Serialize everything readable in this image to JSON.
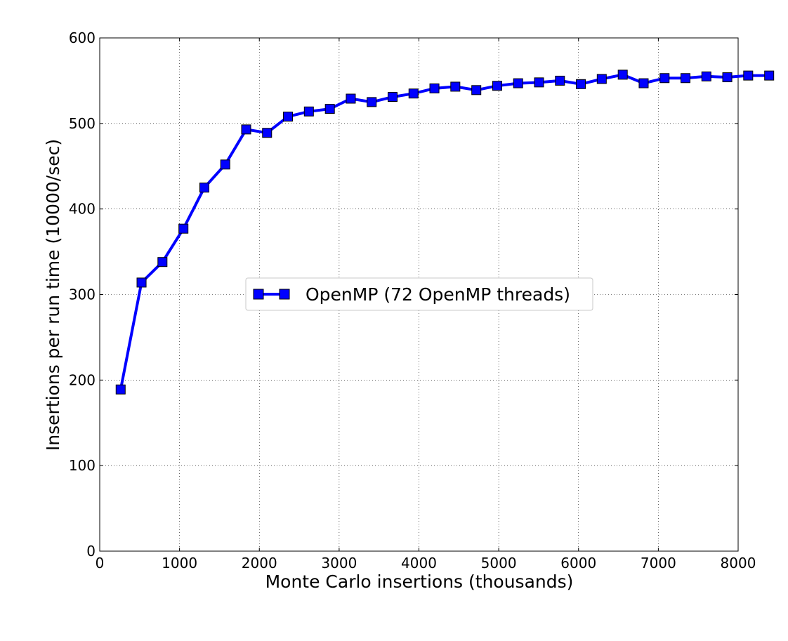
{
  "chart_data": {
    "type": "line",
    "title": "",
    "xlabel": "Monte Carlo insertions (thousands)",
    "ylabel": "Insertions per run time (10000/sec)",
    "xlim": [
      0,
      8000
    ],
    "ylim": [
      0,
      600
    ],
    "xticks": [
      0,
      1000,
      2000,
      3000,
      4000,
      5000,
      6000,
      7000,
      8000
    ],
    "yticks": [
      0,
      100,
      200,
      300,
      400,
      500,
      600
    ],
    "grid": true,
    "legend": {
      "position": "center",
      "entries": [
        "OpenMP (72 OpenMP threads)"
      ]
    },
    "series": [
      {
        "name": "OpenMP (72 OpenMP threads)",
        "color": "#0000ff",
        "marker": "square",
        "x": [
          262,
          524,
          786,
          1049,
          1311,
          1573,
          1835,
          2097,
          2359,
          2621,
          2884,
          3146,
          3408,
          3670,
          3932,
          4194,
          4456,
          4719,
          4981,
          5243,
          5505,
          5767,
          6029,
          6291,
          6554,
          6816,
          7078,
          7340,
          7602,
          7864,
          8126,
          8389
        ],
        "y": [
          189,
          314,
          338,
          377,
          425,
          452,
          493,
          489,
          508,
          514,
          517,
          529,
          525,
          531,
          535,
          541,
          543,
          539,
          544,
          547,
          548,
          550,
          546,
          552,
          557,
          547,
          553,
          553,
          555,
          554,
          556,
          556
        ]
      }
    ]
  }
}
